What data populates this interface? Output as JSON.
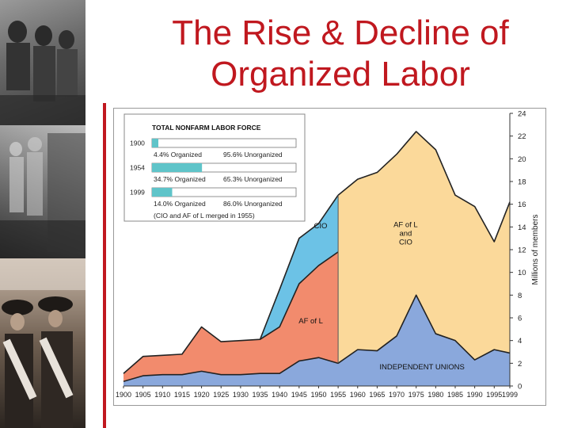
{
  "title_line1": "The Rise & Decline of",
  "title_line2": "Organized Labor",
  "colors": {
    "title": "#c0181f",
    "afl": "#f28b6d",
    "cio": "#6cc2e6",
    "merged": "#fbd99a",
    "independent": "#8aa8dc",
    "inset_bar": "#5fc4c9"
  },
  "chart_data": {
    "type": "area",
    "stacked": true,
    "xlabel": "",
    "ylabel": "Millions of members",
    "xlim": [
      1900,
      1999
    ],
    "ylim": [
      0,
      24
    ],
    "x_ticks": [
      "1900",
      "1905",
      "1910",
      "1915",
      "1920",
      "1925",
      "1930",
      "1935",
      "1940",
      "1945",
      "1950",
      "1955",
      "1960",
      "1965",
      "1970",
      "1975",
      "1980",
      "1985",
      "1990",
      "1995",
      "1999"
    ],
    "y_ticks": [
      "0",
      "2",
      "4",
      "6",
      "8",
      "10",
      "12",
      "14",
      "16",
      "18",
      "20",
      "22",
      "24"
    ],
    "merge_year": 1955,
    "series": [
      {
        "name": "INDEPENDENT UNIONS",
        "label_lines": [
          "INDEPENDENT UNIONS"
        ],
        "points": [
          [
            1900,
            0.4
          ],
          [
            1905,
            0.9
          ],
          [
            1910,
            1.0
          ],
          [
            1915,
            1.0
          ],
          [
            1920,
            1.3
          ],
          [
            1925,
            1.0
          ],
          [
            1930,
            1.0
          ],
          [
            1935,
            1.1
          ],
          [
            1940,
            1.1
          ],
          [
            1945,
            2.2
          ],
          [
            1950,
            2.5
          ],
          [
            1955,
            2.0
          ],
          [
            1960,
            3.2
          ],
          [
            1965,
            3.1
          ],
          [
            1970,
            4.4
          ],
          [
            1975,
            8.0
          ],
          [
            1980,
            4.6
          ],
          [
            1985,
            4.0
          ],
          [
            1990,
            2.3
          ],
          [
            1995,
            3.2
          ],
          [
            1999,
            2.9
          ]
        ]
      },
      {
        "name": "AF of L",
        "label_lines": [
          "AF of L"
        ],
        "points": [
          [
            1900,
            1.1
          ],
          [
            1905,
            2.6
          ],
          [
            1910,
            2.7
          ],
          [
            1915,
            2.8
          ],
          [
            1920,
            5.2
          ],
          [
            1925,
            3.9
          ],
          [
            1930,
            4.0
          ],
          [
            1935,
            4.1
          ],
          [
            1940,
            5.2
          ],
          [
            1945,
            9.0
          ],
          [
            1950,
            10.6
          ],
          [
            1955,
            11.8
          ]
        ]
      },
      {
        "name": "CIO",
        "label_lines": [
          "CIO"
        ],
        "points": [
          [
            1935,
            4.1
          ],
          [
            1940,
            8.5
          ],
          [
            1945,
            13.0
          ],
          [
            1950,
            14.3
          ],
          [
            1955,
            16.8
          ]
        ]
      },
      {
        "name": "AF of L and CIO",
        "label_lines": [
          "AF of L",
          "and",
          "CIO"
        ],
        "points": [
          [
            1955,
            16.8
          ],
          [
            1960,
            18.2
          ],
          [
            1965,
            18.8
          ],
          [
            1970,
            20.4
          ],
          [
            1975,
            22.4
          ],
          [
            1980,
            20.8
          ],
          [
            1985,
            16.8
          ],
          [
            1990,
            15.8
          ],
          [
            1995,
            12.7
          ],
          [
            1999,
            16.2
          ]
        ]
      }
    ],
    "inset": {
      "title": "TOTAL NONFARM LABOR FORCE",
      "rows": [
        {
          "year": "1900",
          "organized_pct": 4.4,
          "organized_label": "4.4% Organized",
          "unorganized_label": "95.6% Unorganized"
        },
        {
          "year": "1954",
          "organized_pct": 34.7,
          "organized_label": "34.7% Organized",
          "unorganized_label": "65.3% Unorganized"
        },
        {
          "year": "1999",
          "organized_pct": 14.0,
          "organized_label": "14.0% Organized",
          "unorganized_label": "86.0% Unorganized"
        }
      ],
      "note": "(CIO and AF of L merged in 1955)"
    }
  }
}
